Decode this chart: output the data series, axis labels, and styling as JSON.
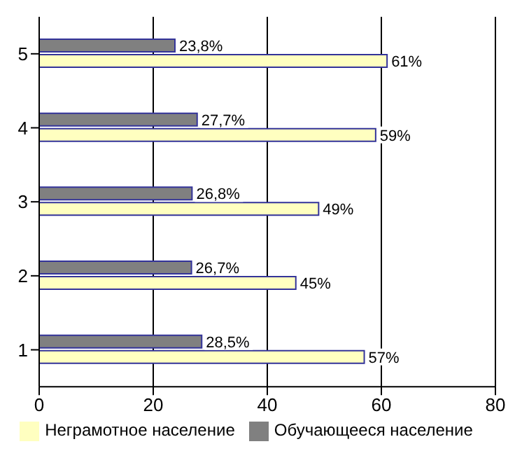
{
  "chart_data": {
    "type": "bar",
    "orientation": "horizontal",
    "categories": [
      "5",
      "4",
      "3",
      "2",
      "1"
    ],
    "series": [
      {
        "name": "Обучающееся население",
        "color": "#808080",
        "values": [
          23.8,
          27.7,
          26.8,
          26.7,
          28.5
        ],
        "value_labels": [
          "23,8%",
          "27,7%",
          "26,8%",
          "26,7%",
          "28,5%"
        ]
      },
      {
        "name": "Неграмотное население",
        "color": "#ffffc0",
        "values": [
          61,
          59,
          49,
          45,
          57
        ],
        "value_labels": [
          "61%",
          "59%",
          "49%",
          "45%",
          "57%"
        ]
      }
    ],
    "xlim": [
      0,
      80
    ],
    "xticks": [
      0,
      20,
      40,
      60,
      80
    ],
    "grid": "x",
    "legend": "bottom"
  }
}
